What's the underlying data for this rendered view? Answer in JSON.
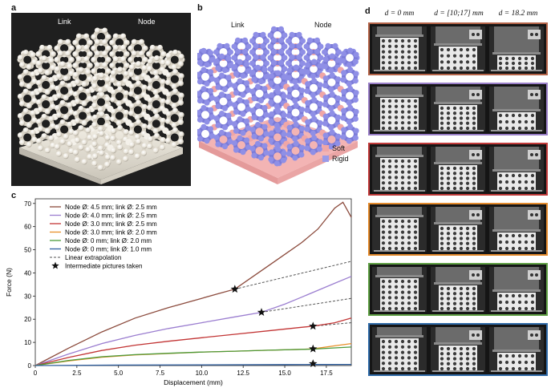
{
  "panel_a": {
    "letter": "a",
    "label_link": "Link",
    "label_node": "Node"
  },
  "panel_b": {
    "letter": "b",
    "label_link": "Link",
    "label_node": "Node",
    "legend": [
      {
        "label": "Soft",
        "color": "#f0a6a6"
      },
      {
        "label": "Rigid",
        "color": "#9a9ae8"
      }
    ]
  },
  "panel_c": {
    "letter": "c"
  },
  "panel_d": {
    "letter": "d",
    "columns": [
      "d = 0 mm",
      "d = [10;17] mm",
      "d = 18.2 mm"
    ],
    "row_colors": [
      "#b5654a",
      "#9a7fc8",
      "#c23b3b",
      "#e38a2c",
      "#5fa045",
      "#2f6aa8"
    ]
  },
  "chart_data": {
    "type": "line",
    "xlabel": "Displacement (mm)",
    "ylabel": "Force (N)",
    "xlim": [
      0,
      19
    ],
    "ylim": [
      0,
      72
    ],
    "xticks": [
      0,
      2.5,
      5.0,
      7.5,
      10.0,
      12.5,
      15.0,
      17.5
    ],
    "xtick_labels": [
      "0",
      "2.5",
      "5.0",
      "7.5",
      "10.0",
      "12.5",
      "15.0",
      "17.5"
    ],
    "yticks": [
      0,
      10,
      20,
      30,
      40,
      50,
      60,
      70
    ],
    "ytick_labels": [
      "0",
      "10",
      "20",
      "30",
      "40",
      "50",
      "60",
      "70"
    ],
    "series": [
      {
        "name": "Node Ø: 4.5 mm; link Ø: 2.5 mm",
        "color": "#8b4a3c",
        "x": [
          0,
          2,
          4,
          6,
          8,
          10,
          11,
          12,
          13,
          14,
          15,
          16,
          17,
          18,
          18.5,
          19
        ],
        "y": [
          0,
          7.5,
          14.5,
          20.5,
          25,
          29,
          31,
          33,
          38,
          43,
          48,
          53,
          59,
          68,
          70.5,
          64
        ]
      },
      {
        "name": "Node Ø: 4.0 mm; link Ø: 2.5 mm",
        "color": "#9b7ed0",
        "x": [
          0,
          2,
          4,
          6,
          8,
          10,
          12,
          13.6,
          15,
          16,
          17,
          18,
          19
        ],
        "y": [
          0,
          5,
          9.5,
          13,
          16,
          18.5,
          21,
          23,
          26.5,
          29.5,
          32.5,
          35.5,
          38.5
        ]
      },
      {
        "name": "Node Ø: 3.0 mm; link Ø: 2.5 mm",
        "color": "#c23535",
        "x": [
          0,
          2,
          4,
          6,
          8,
          10,
          12,
          14,
          16,
          16.7,
          18,
          19
        ],
        "y": [
          0,
          3.5,
          6.5,
          8.8,
          10.5,
          12,
          13.5,
          15,
          16.5,
          17,
          18.5,
          20.5
        ]
      },
      {
        "name": "Node Ø: 3.0 mm; link Ø: 2.0 mm",
        "color": "#e8902a",
        "x": [
          0,
          2,
          4,
          6,
          8,
          10,
          12,
          14,
          16,
          16.7,
          18,
          19
        ],
        "y": [
          0,
          2,
          3.6,
          4.6,
          5.2,
          5.8,
          6.2,
          6.6,
          7,
          7.2,
          8.5,
          9.5
        ]
      },
      {
        "name": "Node Ø: 0 mm; link Ø: 2.0 mm",
        "color": "#4c9a3a",
        "x": [
          0,
          2,
          4,
          6,
          8,
          10,
          12,
          14,
          16,
          16.7,
          18,
          19
        ],
        "y": [
          0,
          2.2,
          3.8,
          4.7,
          5.3,
          5.8,
          6.2,
          6.6,
          7,
          7.1,
          7.6,
          8
        ]
      },
      {
        "name": "Node Ø: 0 mm; link Ø: 1.0 mm",
        "color": "#2f5fa0",
        "x": [
          0,
          5,
          10,
          15,
          16.7,
          19
        ],
        "y": [
          0,
          0.2,
          0.3,
          0.4,
          0.45,
          0.5
        ]
      }
    ],
    "extrapolation_label": "Linear extrapolation",
    "extrapolations": [
      {
        "x": [
          12,
          19
        ],
        "y": [
          33,
          45
        ]
      },
      {
        "x": [
          13.6,
          19
        ],
        "y": [
          23,
          29
        ]
      },
      {
        "x": [
          16.7,
          19
        ],
        "y": [
          17,
          18.5
        ]
      }
    ],
    "pictures_label": "Intermediate pictures taken",
    "stars": [
      {
        "x": 12,
        "y": 33
      },
      {
        "x": 13.6,
        "y": 23
      },
      {
        "x": 16.7,
        "y": 17
      },
      {
        "x": 16.7,
        "y": 7.2
      },
      {
        "x": 16.7,
        "y": 0.8
      }
    ]
  }
}
